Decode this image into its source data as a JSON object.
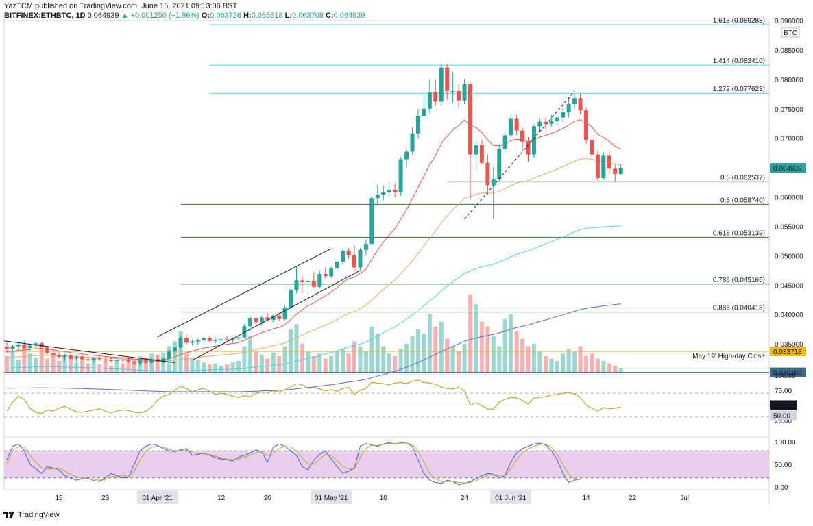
{
  "header": {
    "publisher": "YazTCM published on TradingView.com, June 15, 2021 09:13:06 BST",
    "symbol": "BITFINEX:ETHBTC, 1D",
    "last": "0.064939",
    "change": "+0.001250 (+1.96%)",
    "o_label": "O:",
    "o": "0.063726",
    "h_label": "H:",
    "h": "0.065518",
    "l_label": "L:",
    "l": "0.063708",
    "c_label": "C:",
    "c": "0.064939"
  },
  "footer": {
    "brand": "TradingView",
    "logo_icon": "tradingview-logo-icon"
  },
  "chart_data": {
    "type": "candlestick",
    "currency": "BTC",
    "ylim": [
      0.03,
      0.09
    ],
    "y_ticks": [
      "0.035000",
      "0.040000",
      "0.045000",
      "0.050000",
      "0.055000",
      "0.060000",
      "0.065000",
      "0.070000",
      "0.075000",
      "0.080000",
      "0.085000",
      "0.090000"
    ],
    "x_ticks": [
      {
        "label": "15",
        "day": 15,
        "highlight": false
      },
      {
        "label": "23",
        "day": 23,
        "highlight": false
      },
      {
        "label": "01 Apr '21",
        "day": 32,
        "highlight": true
      },
      {
        "label": "12",
        "day": 43,
        "highlight": false
      },
      {
        "label": "20",
        "day": 51,
        "highlight": false
      },
      {
        "label": "01 May '21",
        "day": 62,
        "highlight": true
      },
      {
        "label": "10",
        "day": 71,
        "highlight": false
      },
      {
        "label": "24",
        "day": 85,
        "highlight": false
      },
      {
        "label": "01 Jun '21",
        "day": 93,
        "highlight": true
      },
      {
        "label": "14",
        "day": 106,
        "highlight": false
      },
      {
        "label": "22",
        "day": 114,
        "highlight": false
      },
      {
        "label": "Jul",
        "day": 123,
        "highlight": false
      }
    ],
    "price_label": {
      "value": 0.064939,
      "text": "0.064939",
      "color": "#26a69a"
    },
    "levels": [
      {
        "text": "1.618 (0.089288)",
        "value": 0.089288,
        "color": "#4dd0e1",
        "from_day": 41
      },
      {
        "text": "1.414 (0.082410)",
        "value": 0.08241,
        "color": "#4dd0e1",
        "from_day": 41
      },
      {
        "text": "1.272 (0.077623)",
        "value": 0.077623,
        "color": "#4dd0e1",
        "from_day": 41
      },
      {
        "text": "0.5 (0.062537)",
        "value": 0.062537,
        "color": "#b6d7a8",
        "from_day": 82
      },
      {
        "text": "0.5 (0.058740)",
        "value": 0.05874,
        "color": "#2e7d32",
        "from_day": 36
      },
      {
        "text": "0.618 (0.053139)",
        "value": 0.053139,
        "color": "#2e7d32",
        "from_day": 36
      },
      {
        "text": "0.786 (0.045165)",
        "value": 0.045165,
        "color": "#2e7d32",
        "from_day": 36
      },
      {
        "text": "0.886 (0.040418)",
        "value": 0.040418,
        "color": "#2e7d32",
        "from_day": 36
      }
    ],
    "support_lines": [
      {
        "text": "May 19' High-day Close",
        "value": 0.033718,
        "label": "0.033718",
        "color": "#f0b90b",
        "label_bg": "#f0b90b"
      },
      {
        "text": "",
        "value": 0.030163,
        "label": "0.030163",
        "color": "#3d6b8c",
        "label_bg": "#3d6b8c"
      }
    ],
    "candles": [
      [
        0.0345,
        0.0352,
        0.0335,
        0.0342
      ],
      [
        0.0342,
        0.0348,
        0.0336,
        0.0346
      ],
      [
        0.0346,
        0.0352,
        0.034,
        0.0349
      ],
      [
        0.0349,
        0.0354,
        0.0341,
        0.0343
      ],
      [
        0.0343,
        0.035,
        0.0338,
        0.0347
      ],
      [
        0.0347,
        0.0353,
        0.0343,
        0.0351
      ],
      [
        0.0351,
        0.0353,
        0.0341,
        0.0344
      ],
      [
        0.0344,
        0.0347,
        0.0331,
        0.0334
      ],
      [
        0.0334,
        0.0341,
        0.0328,
        0.0331
      ],
      [
        0.0331,
        0.0336,
        0.0325,
        0.0328
      ],
      [
        0.0328,
        0.0333,
        0.0322,
        0.033
      ],
      [
        0.033,
        0.0334,
        0.0323,
        0.0325
      ],
      [
        0.0325,
        0.0331,
        0.032,
        0.0328
      ],
      [
        0.0328,
        0.0333,
        0.0322,
        0.0324
      ],
      [
        0.0324,
        0.0329,
        0.0318,
        0.0322
      ],
      [
        0.0322,
        0.0327,
        0.0318,
        0.0326
      ],
      [
        0.0326,
        0.0332,
        0.0321,
        0.0324
      ],
      [
        0.0324,
        0.0329,
        0.032,
        0.0323
      ],
      [
        0.0323,
        0.0328,
        0.0318,
        0.0321
      ],
      [
        0.0321,
        0.0326,
        0.0317,
        0.0323
      ],
      [
        0.0323,
        0.0328,
        0.0319,
        0.0322
      ],
      [
        0.0322,
        0.0327,
        0.0318,
        0.032
      ],
      [
        0.032,
        0.0325,
        0.0314,
        0.0317
      ],
      [
        0.0317,
        0.0324,
        0.0313,
        0.0322
      ],
      [
        0.0322,
        0.0326,
        0.0315,
        0.0318
      ],
      [
        0.0318,
        0.0326,
        0.0316,
        0.0324
      ],
      [
        0.0324,
        0.033,
        0.0318,
        0.032
      ],
      [
        0.032,
        0.0327,
        0.0317,
        0.0325
      ],
      [
        0.0325,
        0.034,
        0.0323,
        0.0337
      ],
      [
        0.0337,
        0.0348,
        0.0331,
        0.0344
      ],
      [
        0.0344,
        0.0364,
        0.0341,
        0.036
      ],
      [
        0.036,
        0.0366,
        0.0349,
        0.0352
      ],
      [
        0.0352,
        0.0358,
        0.0347,
        0.0354
      ],
      [
        0.0354,
        0.0359,
        0.0348,
        0.0356
      ],
      [
        0.0356,
        0.0362,
        0.0351,
        0.036
      ],
      [
        0.036,
        0.0364,
        0.0353,
        0.0355
      ],
      [
        0.0355,
        0.0361,
        0.0351,
        0.0357
      ],
      [
        0.0357,
        0.0361,
        0.0352,
        0.0358
      ],
      [
        0.0358,
        0.0363,
        0.0353,
        0.0357
      ],
      [
        0.0357,
        0.0361,
        0.0352,
        0.0359
      ],
      [
        0.0359,
        0.0364,
        0.0354,
        0.0361
      ],
      [
        0.0361,
        0.0384,
        0.0359,
        0.038
      ],
      [
        0.038,
        0.0398,
        0.0372,
        0.0394
      ],
      [
        0.0394,
        0.0399,
        0.0383,
        0.0387
      ],
      [
        0.0387,
        0.0398,
        0.0381,
        0.0395
      ],
      [
        0.0395,
        0.0402,
        0.0388,
        0.0391
      ],
      [
        0.0391,
        0.0401,
        0.0386,
        0.0398
      ],
      [
        0.0398,
        0.0403,
        0.0389,
        0.0392
      ],
      [
        0.0392,
        0.0416,
        0.039,
        0.0412
      ],
      [
        0.0412,
        0.0446,
        0.0408,
        0.0442
      ],
      [
        0.0442,
        0.0482,
        0.0436,
        0.0458
      ],
      [
        0.0458,
        0.0466,
        0.0436,
        0.0455
      ],
      [
        0.0455,
        0.0459,
        0.0434,
        0.0457
      ],
      [
        0.0457,
        0.0472,
        0.0445,
        0.0447
      ],
      [
        0.0447,
        0.0475,
        0.0444,
        0.0469
      ],
      [
        0.0469,
        0.048,
        0.0461,
        0.0465
      ],
      [
        0.0465,
        0.0482,
        0.0462,
        0.0478
      ],
      [
        0.0478,
        0.0493,
        0.0472,
        0.049
      ],
      [
        0.049,
        0.0512,
        0.0485,
        0.0508
      ],
      [
        0.0508,
        0.0513,
        0.0495,
        0.0501
      ],
      [
        0.0501,
        0.0518,
        0.0474,
        0.048
      ],
      [
        0.048,
        0.0513,
        0.0475,
        0.051
      ],
      [
        0.051,
        0.0528,
        0.05,
        0.052
      ],
      [
        0.052,
        0.0602,
        0.0518,
        0.0598
      ],
      [
        0.0598,
        0.0621,
        0.0586,
        0.0604
      ],
      [
        0.0604,
        0.062,
        0.0594,
        0.0608
      ],
      [
        0.0608,
        0.0626,
        0.06,
        0.0612
      ],
      [
        0.0612,
        0.0624,
        0.0599,
        0.0608
      ],
      [
        0.0608,
        0.0668,
        0.0602,
        0.0664
      ],
      [
        0.0664,
        0.0681,
        0.065,
        0.0677
      ],
      [
        0.0677,
        0.0718,
        0.0672,
        0.0708
      ],
      [
        0.0708,
        0.075,
        0.0699,
        0.0738
      ],
      [
        0.0738,
        0.0779,
        0.0732,
        0.075
      ],
      [
        0.075,
        0.08,
        0.0742,
        0.0778
      ],
      [
        0.0778,
        0.0799,
        0.0755,
        0.0762
      ],
      [
        0.0762,
        0.0826,
        0.0755,
        0.082
      ],
      [
        0.082,
        0.0826,
        0.0765,
        0.078
      ],
      [
        0.078,
        0.0812,
        0.076,
        0.078
      ],
      [
        0.078,
        0.0792,
        0.0752,
        0.0764
      ],
      [
        0.0764,
        0.08,
        0.0758,
        0.0792
      ],
      [
        0.0792,
        0.0795,
        0.0595,
        0.0672
      ],
      [
        0.0672,
        0.0698,
        0.0646,
        0.0688
      ],
      [
        0.0688,
        0.0697,
        0.0655,
        0.0658
      ],
      [
        0.0658,
        0.0672,
        0.0603,
        0.062
      ],
      [
        0.062,
        0.0651,
        0.0562,
        0.063
      ],
      [
        0.063,
        0.069,
        0.0626,
        0.0682
      ],
      [
        0.0682,
        0.071,
        0.0676,
        0.0705
      ],
      [
        0.0705,
        0.074,
        0.0702,
        0.0733
      ],
      [
        0.0733,
        0.074,
        0.0705,
        0.0713
      ],
      [
        0.0713,
        0.0718,
        0.0678,
        0.0694
      ],
      [
        0.0694,
        0.0702,
        0.066,
        0.0672
      ],
      [
        0.0672,
        0.0724,
        0.0667,
        0.072
      ],
      [
        0.072,
        0.0733,
        0.0711,
        0.0728
      ],
      [
        0.0728,
        0.0735,
        0.0715,
        0.0724
      ],
      [
        0.0724,
        0.074,
        0.0719,
        0.0729
      ],
      [
        0.0729,
        0.0738,
        0.0721,
        0.0735
      ],
      [
        0.0735,
        0.0754,
        0.0728,
        0.0744
      ],
      [
        0.0744,
        0.077,
        0.0735,
        0.0758
      ],
      [
        0.0758,
        0.0775,
        0.0751,
        0.0768
      ],
      [
        0.0768,
        0.0776,
        0.074,
        0.0747
      ],
      [
        0.0747,
        0.0752,
        0.069,
        0.0697
      ],
      [
        0.0697,
        0.0702,
        0.0668,
        0.0672
      ],
      [
        0.0672,
        0.0678,
        0.0628,
        0.0632
      ],
      [
        0.0632,
        0.0675,
        0.0629,
        0.067
      ],
      [
        0.067,
        0.0678,
        0.064,
        0.0648
      ],
      [
        0.0648,
        0.0657,
        0.0625,
        0.0639
      ],
      [
        0.0639,
        0.0655,
        0.0637,
        0.0649
      ]
    ],
    "volume": [
      0.35,
      0.45,
      0.28,
      0.55,
      0.4,
      0.32,
      0.5,
      0.3,
      0.42,
      0.25,
      0.38,
      0.3,
      0.22,
      0.35,
      0.2,
      0.3,
      0.18,
      0.28,
      0.15,
      0.25,
      0.2,
      0.3,
      0.28,
      0.35,
      0.32,
      0.4,
      0.38,
      0.42,
      0.55,
      0.65,
      0.85,
      0.4,
      0.3,
      0.28,
      0.22,
      0.18,
      0.2,
      0.15,
      0.18,
      0.22,
      0.25,
      0.55,
      0.75,
      0.45,
      0.38,
      0.3,
      0.42,
      0.35,
      0.55,
      0.9,
      1.0,
      0.6,
      0.45,
      0.35,
      0.4,
      0.3,
      0.35,
      0.45,
      0.5,
      0.4,
      0.65,
      0.55,
      0.45,
      0.95,
      0.8,
      0.55,
      0.4,
      0.35,
      0.5,
      0.6,
      0.75,
      0.9,
      0.8,
      1.2,
      0.95,
      1.05,
      0.7,
      0.55,
      0.45,
      0.6,
      1.6,
      1.4,
      1.05,
      0.95,
      0.75,
      0.55,
      1.1,
      1.2,
      0.85,
      0.7,
      0.55,
      0.6,
      0.45,
      0.35,
      0.3,
      0.25,
      0.4,
      0.5,
      0.45,
      0.55,
      0.35,
      0.4,
      0.3,
      0.25,
      0.2,
      0.15,
      0.1
    ],
    "volume_colors_up": "#26a69a",
    "volume_colors_down": "#ef5350",
    "moving_averages": [
      {
        "name": "",
        "period": 20,
        "color": "#ef5350"
      },
      {
        "name": "",
        "period": 50,
        "color": "#f4a460"
      },
      {
        "name": "",
        "period": 100,
        "color": "#4dd0e1"
      },
      {
        "name": "",
        "period": 200,
        "color": "#5c6bc0"
      }
    ],
    "rsi": {
      "ylim": [
        0,
        100
      ],
      "ticks": [
        "100.00",
        "75.00",
        "50.00",
        "25.00"
      ],
      "color": "#c9a227",
      "label_a": "50.00",
      "label_b": "50.00",
      "values": [
        40,
        55,
        65,
        60,
        45,
        38,
        36,
        42,
        40,
        45,
        48,
        43,
        39,
        38,
        40,
        42,
        44,
        40,
        37,
        40,
        42,
        41,
        38,
        37,
        40,
        47,
        58,
        65,
        68,
        75,
        82,
        78,
        72,
        76,
        78,
        73,
        68,
        70,
        68,
        65,
        63,
        66,
        64,
        70,
        72,
        71,
        74,
        72,
        76,
        80,
        86,
        84,
        78,
        80,
        77,
        74,
        76,
        73,
        78,
        80,
        68,
        75,
        78,
        88,
        87,
        86,
        84,
        87,
        88,
        86,
        90,
        92,
        88,
        87,
        85,
        80,
        78,
        77,
        80,
        74,
        50,
        54,
        49,
        44,
        43,
        55,
        60,
        63,
        62,
        58,
        52,
        62,
        63,
        64,
        67,
        68,
        70,
        71,
        69,
        63,
        50,
        45,
        40,
        46,
        44,
        45,
        47
      ],
      "grid": [
        70,
        30
      ]
    },
    "stoch": {
      "ylim": [
        0,
        100
      ],
      "ticks": [
        "100.00",
        "50.00",
        "0.00"
      ],
      "band": [
        20,
        80
      ],
      "k_color": "#2962ff",
      "d_color": "#c9a227",
      "k": [
        60,
        90,
        95,
        80,
        50,
        40,
        30,
        45,
        42,
        38,
        25,
        20,
        15,
        18,
        20,
        14,
        12,
        20,
        30,
        25,
        20,
        22,
        50,
        80,
        90,
        95,
        92,
        85,
        80,
        78,
        82,
        85,
        70,
        72,
        75,
        70,
        65,
        62,
        60,
        58,
        66,
        70,
        75,
        82,
        78,
        55,
        88,
        95,
        90,
        80,
        70,
        45,
        38,
        60,
        72,
        80,
        62,
        45,
        30,
        35,
        42,
        90,
        96,
        93,
        90,
        95,
        98,
        95,
        98,
        97,
        90,
        60,
        30,
        15,
        10,
        8,
        15,
        12,
        5,
        8,
        12,
        18,
        25,
        30,
        28,
        20,
        25,
        55,
        75,
        85,
        90,
        95,
        97,
        93,
        80,
        60,
        30,
        10,
        15,
        18
      ],
      "d": [
        50,
        80,
        90,
        88,
        70,
        55,
        42,
        40,
        40,
        42,
        35,
        28,
        22,
        20,
        18,
        17,
        15,
        16,
        22,
        25,
        25,
        22,
        35,
        60,
        80,
        88,
        90,
        88,
        84,
        80,
        80,
        82,
        76,
        74,
        73,
        72,
        68,
        65,
        62,
        60,
        62,
        66,
        70,
        76,
        78,
        70,
        74,
        85,
        90,
        88,
        80,
        65,
        50,
        50,
        62,
        72,
        70,
        58,
        45,
        40,
        40,
        65,
        85,
        92,
        92,
        94,
        96,
        96,
        97,
        97,
        94,
        80,
        55,
        30,
        18,
        12,
        12,
        12,
        10,
        9,
        10,
        14,
        20,
        26,
        28,
        25,
        24,
        40,
        60,
        75,
        85,
        90,
        94,
        95,
        88,
        72,
        50,
        28,
        18,
        16
      ]
    }
  }
}
